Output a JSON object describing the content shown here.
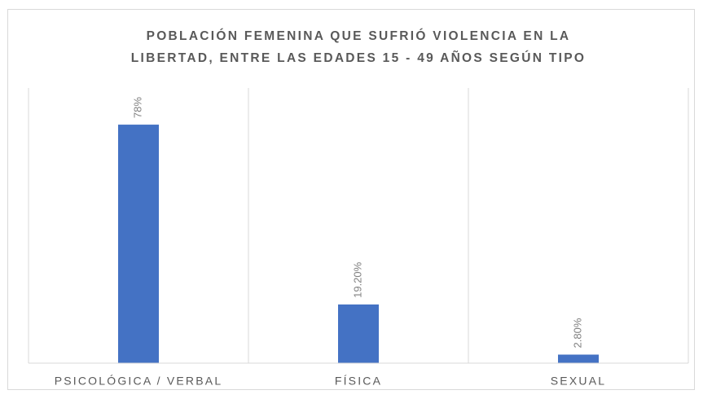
{
  "chart_data": {
    "type": "bar",
    "title": [
      "POBLACIÓN FEMENINA QUE SUFRIÓ VIOLENCIA EN LA",
      "LIBERTAD, ENTRE LAS EDADES 15 - 49 AÑOS SEGÚN TIPO"
    ],
    "categories": [
      "PSICOLÓGICA / VERBAL",
      "FÍSICA",
      "SEXUAL"
    ],
    "values": [
      78,
      19.2,
      2.8
    ],
    "value_labels": [
      "78%",
      "19.20%",
      "2.80%"
    ],
    "color": "#4472c4",
    "ylim": [
      0,
      90
    ]
  }
}
